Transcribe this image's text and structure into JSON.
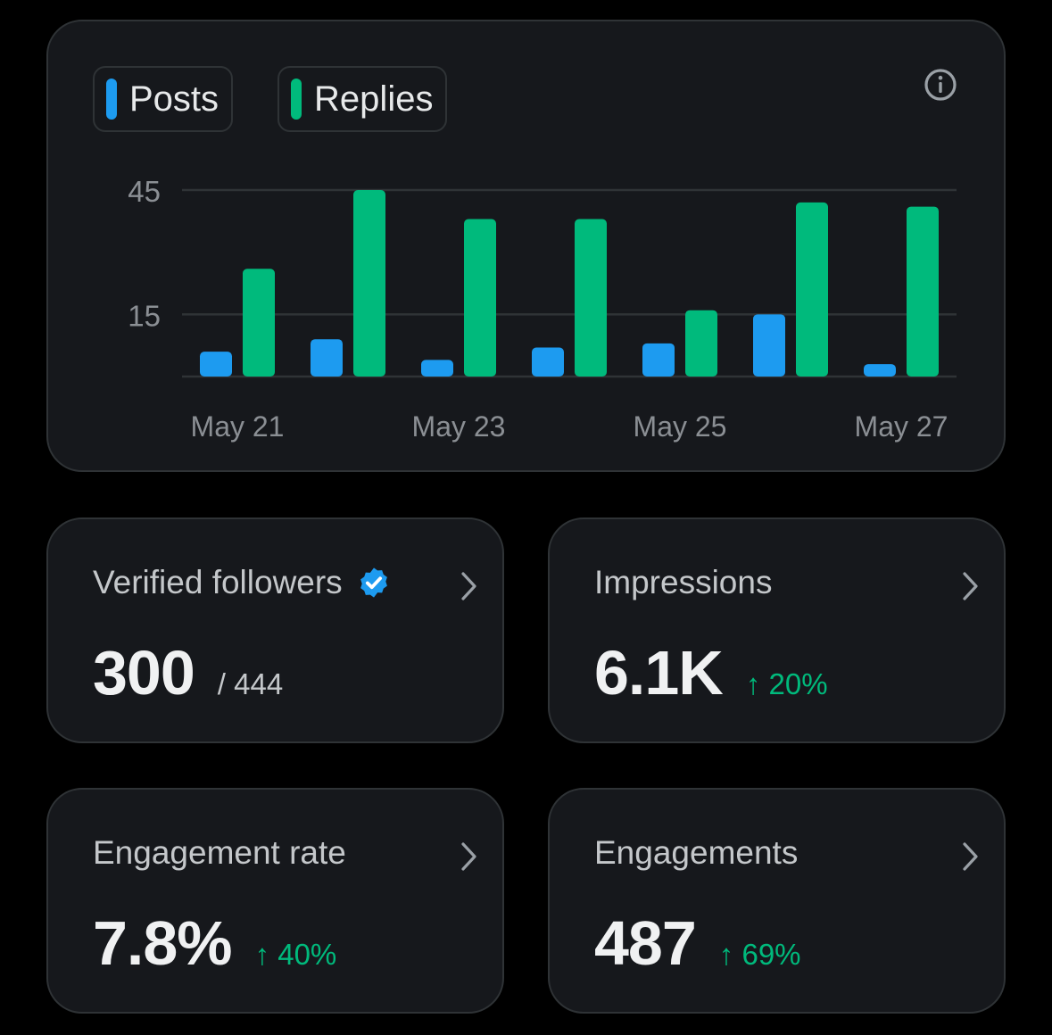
{
  "chart": {
    "legend": [
      {
        "label": "Posts",
        "color": "#1d9bf0"
      },
      {
        "label": "Replies",
        "color": "#00ba7c"
      }
    ],
    "info_icon": "info-icon"
  },
  "chart_data": {
    "type": "bar",
    "categories": [
      "May 21",
      "May 22",
      "May 23",
      "May 24",
      "May 25",
      "May 26",
      "May 27"
    ],
    "x_tick_labels": [
      "May 21",
      "May 23",
      "May 25",
      "May 27"
    ],
    "y_tick_labels": [
      "45",
      "15"
    ],
    "y_ticks": [
      45,
      15
    ],
    "ylim": [
      0,
      45
    ],
    "grid": true,
    "series": [
      {
        "name": "Posts",
        "color": "#1d9bf0",
        "values": [
          6,
          9,
          4,
          7,
          8,
          15,
          3
        ]
      },
      {
        "name": "Replies",
        "color": "#00ba7c",
        "values": [
          26,
          45,
          38,
          38,
          16,
          42,
          41
        ]
      }
    ]
  },
  "tiles": [
    {
      "title": "Verified followers",
      "value": "300",
      "sub": "/ 444",
      "verified_icon": "verified-badge-icon"
    },
    {
      "title": "Impressions",
      "value": "6.1K",
      "delta": "↑ 20%"
    },
    {
      "title": "Engagement rate",
      "value": "7.8%",
      "delta": "↑ 40%"
    },
    {
      "title": "Engagements",
      "value": "487",
      "delta": "↑ 69%"
    }
  ],
  "colors": {
    "background": "#000000",
    "card": "#16181c",
    "border": "#2f3336",
    "posts": "#1d9bf0",
    "replies": "#00ba7c",
    "positive": "#00ba7c"
  }
}
